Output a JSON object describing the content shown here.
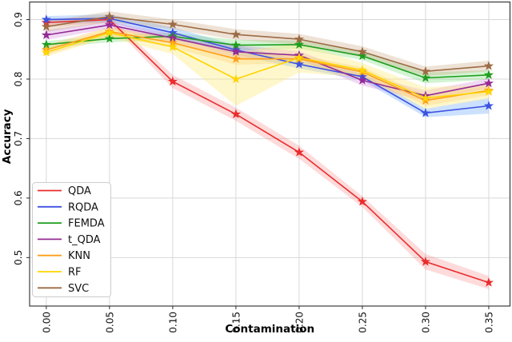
{
  "figure": {
    "xlabel": "Contamination",
    "ylabel": "Accuracy"
  },
  "chart_data": {
    "type": "line",
    "title": "",
    "xlabel": "Contamination",
    "ylabel": "Accuracy",
    "x": [
      0.0,
      0.05,
      0.1,
      0.15,
      0.2,
      0.25,
      0.3,
      0.35
    ],
    "x_tick_labels": [
      "0.00",
      "0.05",
      "0.10",
      "0.15",
      "0.20",
      "0.25",
      "0.30",
      "0.35"
    ],
    "y_ticks": [
      0.5,
      0.6,
      0.7,
      0.8,
      0.9
    ],
    "y_tick_labels": [
      "0.5",
      "0.6",
      "0.7",
      "0.8",
      "0.9"
    ],
    "xlim": [
      -0.0132,
      0.3668
    ],
    "ylim": [
      0.4185,
      0.9296
    ],
    "grid": true,
    "grid_color": "#d8d8d8",
    "legend_position": "lower-left",
    "marker": "star",
    "series": [
      {
        "name": "QDA",
        "color": "#ea2c2c",
        "band_color": "rgba(250,90,90,0.22)",
        "values": [
          0.895,
          0.9,
          0.796,
          0.741,
          0.677,
          0.594,
          0.493,
          0.458
        ],
        "band_halfwidth": [
          0.007,
          0.005,
          0.011,
          0.011,
          0.011,
          0.009,
          0.013,
          0.011
        ]
      },
      {
        "name": "RQDA",
        "color": "#3d52e0",
        "band_color": "rgba(110,170,255,0.35)",
        "values": [
          0.9,
          0.902,
          0.878,
          0.849,
          0.825,
          0.804,
          0.743,
          0.755
        ],
        "band_halfwidth": [
          0.006,
          0.007,
          0.009,
          0.008,
          0.007,
          0.006,
          0.007,
          0.013
        ]
      },
      {
        "name": "FEMDA",
        "color": "#1f9e1f",
        "band_color": "rgba(110,220,110,0.30)",
        "values": [
          0.858,
          0.868,
          0.872,
          0.857,
          0.858,
          0.839,
          0.802,
          0.807
        ],
        "band_halfwidth": [
          0.006,
          0.006,
          0.006,
          0.009,
          0.007,
          0.007,
          0.009,
          0.008
        ]
      },
      {
        "name": "t_QDA",
        "color": "#942a94",
        "band_color": "rgba(205,130,220,0.30)",
        "values": [
          0.874,
          0.891,
          0.869,
          0.846,
          0.84,
          0.798,
          0.772,
          0.793
        ],
        "band_halfwidth": [
          0.008,
          0.006,
          0.007,
          0.011,
          0.007,
          0.009,
          0.009,
          0.008
        ]
      },
      {
        "name": "KNN",
        "color": "#ff9f1a",
        "band_color": "rgba(255,185,90,0.30)",
        "values": [
          0.849,
          0.88,
          0.861,
          0.834,
          0.834,
          0.812,
          0.764,
          0.781
        ],
        "band_halfwidth": [
          0.008,
          0.008,
          0.008,
          0.01,
          0.007,
          0.008,
          0.009,
          0.008
        ]
      },
      {
        "name": "RF",
        "color": "#ffd400",
        "band_color": "rgba(255,235,120,0.38)",
        "values": [
          0.845,
          0.878,
          0.854,
          0.8,
          0.836,
          0.815,
          0.768,
          0.779
        ],
        "band_halfwidth": [
          0.007,
          0.008,
          0.012,
          0.045,
          0.025,
          0.012,
          0.018,
          0.012
        ]
      },
      {
        "name": "SVC",
        "color": "#9c6b44",
        "band_color": "rgba(200,160,120,0.30)",
        "values": [
          0.888,
          0.905,
          0.892,
          0.875,
          0.867,
          0.846,
          0.813,
          0.822
        ],
        "band_halfwidth": [
          0.009,
          0.009,
          0.008,
          0.009,
          0.009,
          0.009,
          0.008,
          0.009
        ]
      }
    ]
  }
}
